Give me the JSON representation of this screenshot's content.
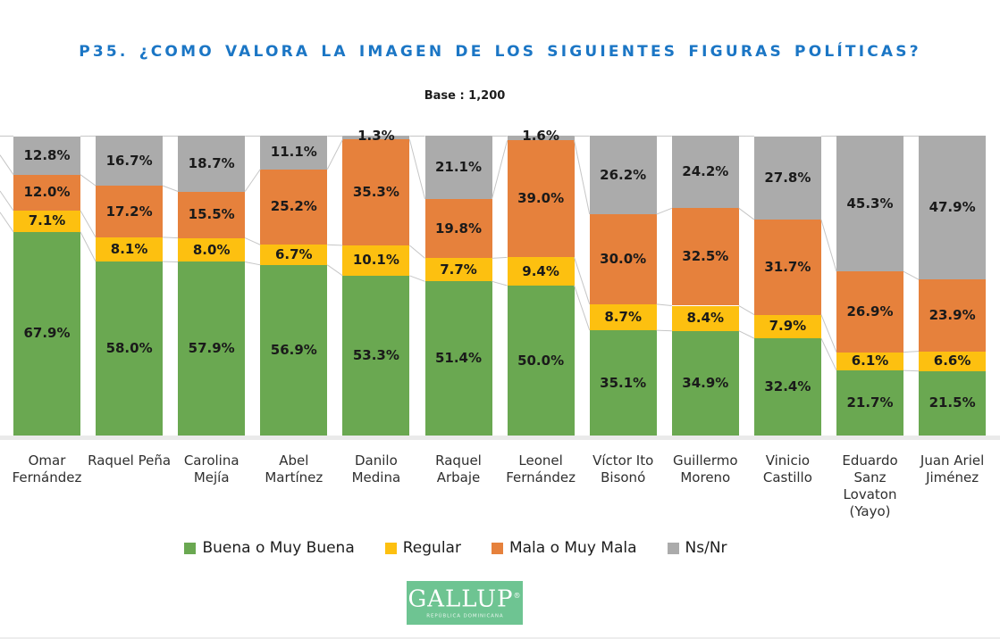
{
  "header": {
    "title": "P35. ¿COMO VALORA LA IMAGEN DE LOS SIGUIENTES FIGURAS POLÍTICAS?",
    "title_color": "#1b76c5",
    "base_label": "Base : 1,200"
  },
  "chart_data": {
    "type": "bar",
    "stacked": true,
    "percent_stacked": true,
    "ylim": [
      0,
      100
    ],
    "value_suffix": "%",
    "grid": false,
    "legend_position": "bottom",
    "connector_lines": true,
    "connector_color": "#c6c6c6",
    "axis_band_color": "#eaeaea",
    "categories": [
      "Omar Fernández",
      "Raquel Peña",
      "Carolina Mejía",
      "Abel Martínez",
      "Danilo Medina",
      "Raquel Arbaje",
      "Leonel Fernández",
      "Víctor Ito Bisonó",
      "Guillermo Moreno",
      "Vinicio Castillo",
      "Eduardo Sanz Lovaton (Yayo)",
      "Juan Ariel Jiménez"
    ],
    "categories_display": [
      "Omar\nFernández",
      "Raquel Peña",
      "Carolina\nMejía",
      "Abel\nMartínez",
      "Danilo\nMedina",
      "Raquel\nArbaje",
      "Leonel\nFernández",
      "Víctor Ito\nBisonó",
      "Guillermo\nMoreno",
      "Vinicio\nCastillo",
      "Eduardo\nSanz\nLovaton\n(Yayo)",
      "Juan Ariel\nJiménez"
    ],
    "series": [
      {
        "name": "Buena o Muy Buena",
        "color": "#6aa851",
        "values": [
          67.9,
          58.0,
          57.9,
          56.9,
          53.3,
          51.4,
          50.0,
          35.1,
          34.9,
          32.4,
          21.7,
          21.5
        ]
      },
      {
        "name": "Regular",
        "color": "#fdc010",
        "values": [
          7.1,
          8.1,
          8.0,
          6.7,
          10.1,
          7.7,
          9.4,
          8.7,
          8.4,
          7.9,
          6.1,
          6.6
        ]
      },
      {
        "name": "Mala o Muy Mala",
        "color": "#e6813c",
        "values": [
          12.0,
          17.2,
          15.5,
          25.2,
          35.3,
          19.8,
          39.0,
          30.0,
          32.5,
          31.7,
          26.9,
          23.9
        ]
      },
      {
        "name": "Ns/Nr",
        "color": "#ababab",
        "values": [
          12.8,
          16.7,
          18.7,
          11.1,
          1.3,
          21.1,
          1.6,
          26.2,
          24.2,
          27.8,
          45.3,
          47.9
        ]
      }
    ]
  },
  "legend": {
    "items": [
      {
        "label": "Buena o Muy Buena",
        "color": "#6aa851"
      },
      {
        "label": "Regular",
        "color": "#fdc010"
      },
      {
        "label": "Mala o Muy Mala",
        "color": "#e6813c"
      },
      {
        "label": "Ns/Nr",
        "color": "#ababab"
      }
    ]
  },
  "logo": {
    "text": "GALLUP",
    "registered": "®",
    "caption": "REPÚBLICA DOMINICANA",
    "bg": "#6ec492",
    "text_color": "#ffffff"
  }
}
